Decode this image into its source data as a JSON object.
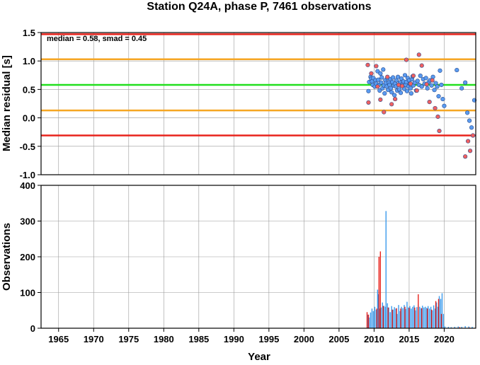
{
  "chart_data": [
    {
      "type": "scatter",
      "title": "Station Q24A, phase P, 7461 observations",
      "ylabel": "Median residual [s]",
      "annotation": "median = 0.58, smad = 0.45",
      "xlim": [
        1962.5,
        2024.5
      ],
      "ylim": [
        -1.0,
        1.5
      ],
      "yticks": [
        "1.5",
        "1.0",
        "0.5",
        "0.0",
        "-0.5",
        "-1.0"
      ],
      "reference_lines": [
        {
          "y": 1.47,
          "color": "#e8231c"
        },
        {
          "y": 1.03,
          "color": "#f5a623"
        },
        {
          "y": 0.58,
          "color": "#22e01e"
        },
        {
          "y": 0.13,
          "color": "#f5a623"
        },
        {
          "y": -0.31,
          "color": "#e8231c"
        }
      ],
      "series": [
        {
          "color": "#5a9bf0",
          "points": [
            [
              2009.2,
              0.47
            ],
            [
              2009.3,
              0.63
            ],
            [
              2009.5,
              0.72
            ],
            [
              2009.6,
              0.69
            ],
            [
              2009.7,
              0.64
            ],
            [
              2009.8,
              0.58
            ],
            [
              2009.9,
              0.7
            ],
            [
              2010.1,
              0.55
            ],
            [
              2010.2,
              0.66
            ],
            [
              2010.3,
              0.6
            ],
            [
              2010.5,
              0.82
            ],
            [
              2010.6,
              0.67
            ],
            [
              2010.7,
              0.58
            ],
            [
              2010.8,
              0.48
            ],
            [
              2010.9,
              0.78
            ],
            [
              2011.0,
              0.62
            ],
            [
              2011.1,
              0.71
            ],
            [
              2011.2,
              0.52
            ],
            [
              2011.3,
              0.85
            ],
            [
              2011.4,
              0.57
            ],
            [
              2011.5,
              0.43
            ],
            [
              2011.6,
              0.66
            ],
            [
              2011.7,
              0.61
            ],
            [
              2011.8,
              0.55
            ],
            [
              2011.9,
              0.7
            ],
            [
              2012.0,
              0.49
            ],
            [
              2012.1,
              0.62
            ],
            [
              2012.2,
              0.58
            ],
            [
              2012.3,
              0.68
            ],
            [
              2012.4,
              0.52
            ],
            [
              2012.5,
              0.45
            ],
            [
              2012.6,
              0.63
            ],
            [
              2012.7,
              0.71
            ],
            [
              2012.8,
              0.57
            ],
            [
              2012.9,
              0.4
            ],
            [
              2013.0,
              0.6
            ],
            [
              2013.1,
              0.55
            ],
            [
              2013.2,
              0.66
            ],
            [
              2013.3,
              0.48
            ],
            [
              2013.4,
              0.72
            ],
            [
              2013.5,
              0.58
            ],
            [
              2013.6,
              0.5
            ],
            [
              2013.7,
              0.62
            ],
            [
              2013.8,
              0.44
            ],
            [
              2013.9,
              0.69
            ],
            [
              2014.0,
              0.56
            ],
            [
              2014.1,
              0.6
            ],
            [
              2014.2,
              0.64
            ],
            [
              2014.3,
              0.51
            ],
            [
              2014.4,
              0.75
            ],
            [
              2014.5,
              0.58
            ],
            [
              2014.6,
              0.63
            ],
            [
              2014.7,
              0.47
            ],
            [
              2014.8,
              0.7
            ],
            [
              2014.9,
              0.55
            ],
            [
              2015.0,
              0.66
            ],
            [
              2015.1,
              0.6
            ],
            [
              2015.2,
              0.52
            ],
            [
              2015.3,
              0.43
            ],
            [
              2015.4,
              0.68
            ],
            [
              2015.5,
              0.73
            ],
            [
              2015.6,
              0.57
            ],
            [
              2015.8,
              0.62
            ],
            [
              2016.0,
              0.48
            ],
            [
              2016.2,
              0.65
            ],
            [
              2016.4,
              0.58
            ],
            [
              2016.6,
              0.74
            ],
            [
              2016.8,
              0.55
            ],
            [
              2017.0,
              0.68
            ],
            [
              2017.2,
              0.6
            ],
            [
              2017.4,
              0.7
            ],
            [
              2017.6,
              0.52
            ],
            [
              2017.8,
              0.63
            ],
            [
              2018.0,
              0.66
            ],
            [
              2018.2,
              0.57
            ],
            [
              2018.4,
              0.72
            ],
            [
              2018.6,
              0.49
            ],
            [
              2018.8,
              0.61
            ],
            [
              2019.0,
              0.55
            ],
            [
              2019.2,
              0.38
            ],
            [
              2019.4,
              0.83
            ],
            [
              2019.6,
              0.58
            ],
            [
              2019.8,
              0.33
            ],
            [
              2020.0,
              0.21
            ],
            [
              2021.8,
              0.84
            ],
            [
              2022.5,
              0.52
            ],
            [
              2023.0,
              0.62
            ],
            [
              2023.3,
              0.09
            ],
            [
              2023.6,
              -0.05
            ],
            [
              2023.9,
              -0.17
            ],
            [
              2024.3,
              0.31
            ]
          ]
        },
        {
          "color": "#f06060",
          "points": [
            [
              2009.1,
              0.93
            ],
            [
              2009.2,
              0.27
            ],
            [
              2009.6,
              0.78
            ],
            [
              2010.3,
              0.91
            ],
            [
              2010.5,
              0.55
            ],
            [
              2010.9,
              0.32
            ],
            [
              2011.4,
              0.1
            ],
            [
              2011.9,
              0.72
            ],
            [
              2012.5,
              0.24
            ],
            [
              2013.0,
              0.33
            ],
            [
              2013.5,
              0.58
            ],
            [
              2014.0,
              0.56
            ],
            [
              2014.6,
              1.02
            ],
            [
              2015.2,
              0.6
            ],
            [
              2015.6,
              0.74
            ],
            [
              2016.1,
              0.48
            ],
            [
              2016.4,
              1.11
            ],
            [
              2016.8,
              0.92
            ],
            [
              2017.5,
              0.59
            ],
            [
              2017.9,
              0.28
            ],
            [
              2018.3,
              0.66
            ],
            [
              2018.7,
              0.17
            ],
            [
              2019.1,
              0.02
            ],
            [
              2019.3,
              -0.23
            ],
            [
              2023.0,
              -0.68
            ],
            [
              2023.4,
              -0.41
            ],
            [
              2023.7,
              -0.58
            ],
            [
              2024.1,
              -0.31
            ]
          ]
        }
      ]
    },
    {
      "type": "bar",
      "ylabel": "Observations",
      "xlabel": "Year",
      "xlim": [
        1962.5,
        2024.5
      ],
      "ylim": [
        0,
        400
      ],
      "xticks": [
        "1965",
        "1970",
        "1975",
        "1980",
        "1985",
        "1990",
        "1995",
        "2000",
        "2005",
        "2010",
        "2015",
        "2020"
      ],
      "yticks": [
        "400",
        "300",
        "200",
        "100",
        "0"
      ],
      "series": [
        {
          "color": "#3c9bec",
          "bars": [
            [
              2009.1,
              38
            ],
            [
              2009.3,
              30
            ],
            [
              2009.5,
              44
            ],
            [
              2009.7,
              55
            ],
            [
              2009.9,
              48
            ],
            [
              2010.1,
              60
            ],
            [
              2010.3,
              52
            ],
            [
              2010.5,
              108
            ],
            [
              2010.6,
              95
            ],
            [
              2010.8,
              55
            ],
            [
              2011.0,
              58
            ],
            [
              2011.2,
              72
            ],
            [
              2011.4,
              63
            ],
            [
              2011.6,
              60
            ],
            [
              2011.7,
              328
            ],
            [
              2011.9,
              70
            ],
            [
              2012.1,
              58
            ],
            [
              2012.3,
              45
            ],
            [
              2012.5,
              62
            ],
            [
              2012.7,
              52
            ],
            [
              2012.9,
              59
            ],
            [
              2013.1,
              55
            ],
            [
              2013.3,
              40
            ],
            [
              2013.5,
              65
            ],
            [
              2013.7,
              48
            ],
            [
              2013.9,
              60
            ],
            [
              2014.1,
              56
            ],
            [
              2014.3,
              65
            ],
            [
              2014.5,
              54
            ],
            [
              2014.7,
              74
            ],
            [
              2014.9,
              58
            ],
            [
              2015.1,
              62
            ],
            [
              2015.3,
              55
            ],
            [
              2015.5,
              60
            ],
            [
              2015.7,
              64
            ],
            [
              2015.9,
              50
            ],
            [
              2016.1,
              59
            ],
            [
              2016.3,
              66
            ],
            [
              2016.5,
              60
            ],
            [
              2016.7,
              56
            ],
            [
              2016.9,
              63
            ],
            [
              2017.1,
              58
            ],
            [
              2017.3,
              60
            ],
            [
              2017.5,
              57
            ],
            [
              2017.7,
              62
            ],
            [
              2017.9,
              55
            ],
            [
              2018.1,
              60
            ],
            [
              2018.3,
              50
            ],
            [
              2018.5,
              64
            ],
            [
              2018.7,
              55
            ],
            [
              2018.9,
              72
            ],
            [
              2019.1,
              60
            ],
            [
              2019.3,
              90
            ],
            [
              2019.5,
              82
            ],
            [
              2019.7,
              98
            ],
            [
              2019.9,
              40
            ],
            [
              2020.1,
              5
            ],
            [
              2020.6,
              4
            ],
            [
              2021.0,
              3
            ],
            [
              2021.5,
              4
            ],
            [
              2022.0,
              5
            ],
            [
              2022.5,
              4
            ],
            [
              2023.0,
              6
            ],
            [
              2023.5,
              5
            ],
            [
              2024.0,
              4
            ]
          ]
        },
        {
          "color": "#e8231c",
          "bars": [
            [
              2009.0,
              45
            ],
            [
              2009.2,
              38
            ],
            [
              2010.4,
              55
            ],
            [
              2010.7,
              200
            ],
            [
              2010.9,
              215
            ],
            [
              2011.3,
              62
            ],
            [
              2012.0,
              58
            ],
            [
              2012.6,
              52
            ],
            [
              2013.2,
              56
            ],
            [
              2013.8,
              55
            ],
            [
              2014.4,
              60
            ],
            [
              2015.0,
              57
            ],
            [
              2015.8,
              58
            ],
            [
              2016.3,
              95
            ],
            [
              2016.8,
              56
            ],
            [
              2017.6,
              55
            ],
            [
              2018.2,
              52
            ],
            [
              2018.8,
              76
            ],
            [
              2019.2,
              82
            ],
            [
              2019.6,
              40
            ],
            [
              2022.2,
              3
            ],
            [
              2023.6,
              2
            ]
          ]
        }
      ]
    }
  ]
}
